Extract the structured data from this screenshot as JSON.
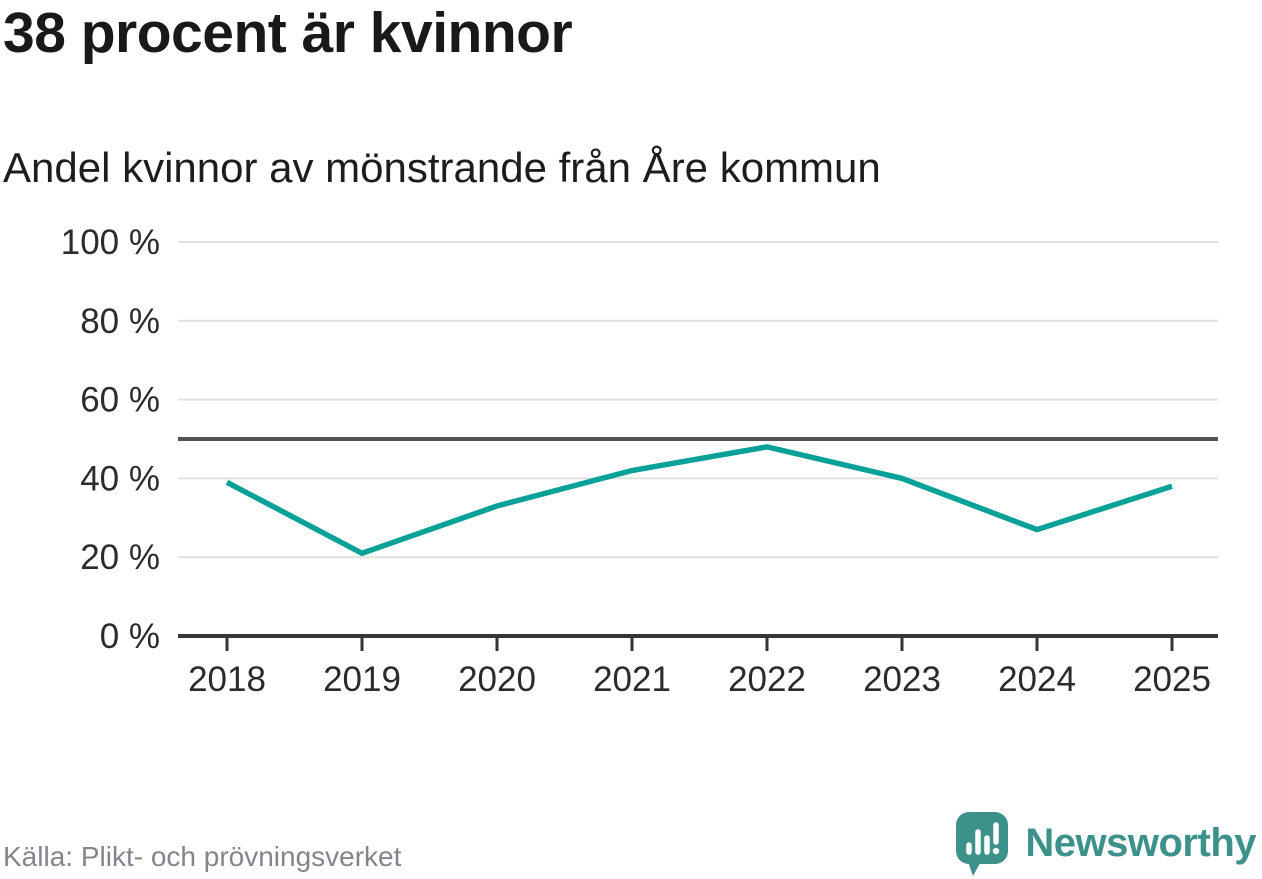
{
  "header": {
    "title": "38 procent är kvinnor",
    "subtitle": "Andel kvinnor av mönstrande från Åre kommun"
  },
  "chart_data": {
    "type": "line",
    "title": "38 procent är kvinnor",
    "subtitle": "Andel kvinnor av mönstrande från Åre kommun",
    "categories": [
      "2018",
      "2019",
      "2020",
      "2021",
      "2022",
      "2023",
      "2024",
      "2025"
    ],
    "series": [
      {
        "name": "Andel kvinnor av mönstrande",
        "values": [
          39,
          21,
          33,
          42,
          48,
          40,
          27,
          38
        ],
        "color": "#0aa198"
      }
    ],
    "unit": "%",
    "xlabel": "",
    "ylabel": "",
    "ylim": [
      0,
      100
    ],
    "yticks": [
      0,
      20,
      40,
      60,
      80,
      100
    ],
    "ytick_suffix": " %",
    "reference_line": {
      "value": 50,
      "color": "#545456"
    },
    "grid": "horizontal",
    "legend": "none",
    "colors": {
      "gridline": "#e1e1e1",
      "axis": "#363636",
      "tick_label": "#2b2b2b"
    }
  },
  "footer": {
    "source": "Källa: Plikt- och prövningsverket",
    "brand": "Newsworthy",
    "brand_color": "#3c918b"
  }
}
